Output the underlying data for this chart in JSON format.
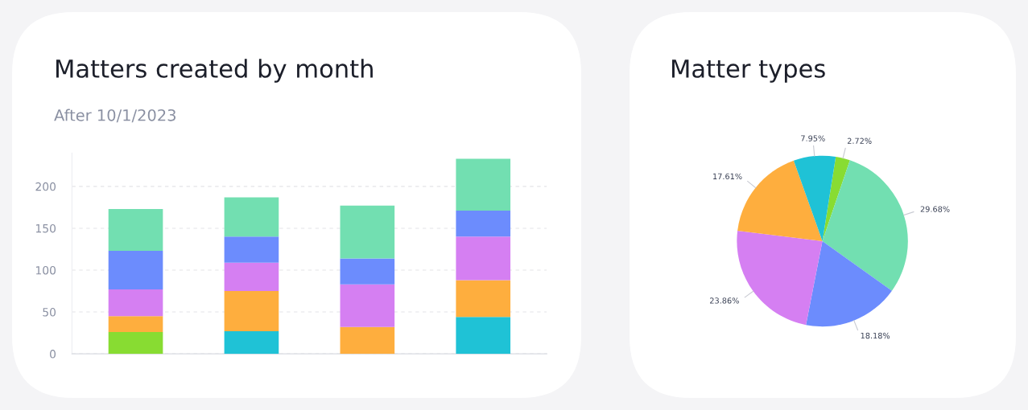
{
  "chart_data": [
    {
      "type": "bar",
      "title": "Matters created by month",
      "subtitle": "After 10/1/2023",
      "categories": [
        null,
        null,
        null,
        null
      ],
      "stacked": true,
      "ylim": [
        0,
        240
      ],
      "yticks": [
        0,
        50,
        100,
        150,
        200
      ],
      "grid": "y",
      "tick_labels": "y",
      "series": [
        {
          "color": "#88dc32",
          "values": [
            26,
            null,
            null,
            null
          ]
        },
        {
          "color": "#1fc2d6",
          "values": [
            null,
            27,
            null,
            44
          ]
        },
        {
          "color": "#feae3e",
          "values": [
            19,
            48,
            32,
            44
          ]
        },
        {
          "color": "#d57ff2",
          "values": [
            32,
            34,
            51,
            52
          ]
        },
        {
          "color": "#6c8cfd",
          "values": [
            46,
            31,
            31,
            31
          ]
        },
        {
          "color": "#72dfb1",
          "values": [
            50,
            47,
            63,
            62
          ]
        }
      ]
    },
    {
      "type": "pie",
      "title": "Matter types",
      "categories": [
        null,
        null,
        null,
        null,
        null,
        null
      ],
      "values": [
        2.72,
        29.68,
        18.18,
        23.86,
        17.61,
        7.95
      ],
      "value_labels": [
        "2.72%",
        "29.68%",
        "18.18%",
        "23.86%",
        "17.61%",
        "7.95%"
      ],
      "colors": [
        "#88dc32",
        "#72dfb1",
        "#6c8cfd",
        "#d57ff2",
        "#feae3e",
        "#1fc2d6"
      ]
    }
  ]
}
